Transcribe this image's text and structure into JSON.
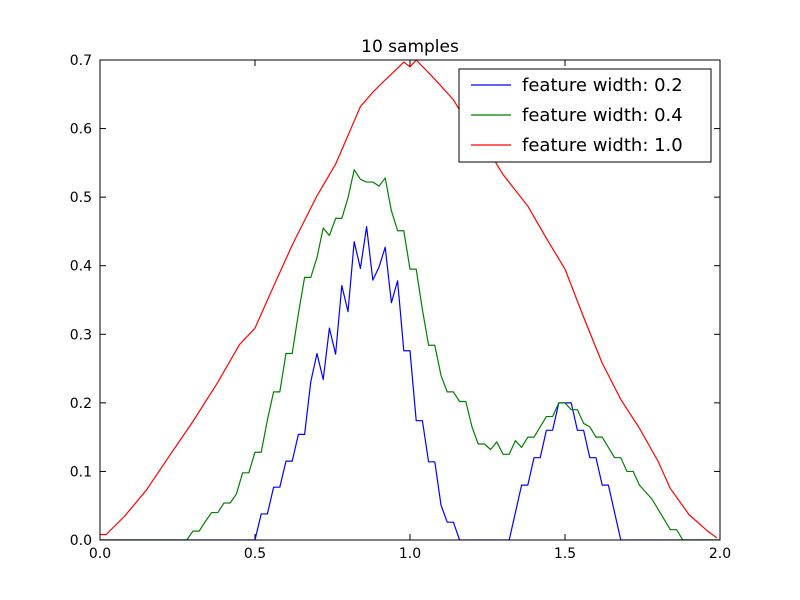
{
  "chart_data": {
    "type": "line",
    "title": "10 samples",
    "xlabel": "",
    "ylabel": "",
    "xlim": [
      0.0,
      2.0
    ],
    "ylim": [
      0.0,
      0.7
    ],
    "xticks": [
      "0.0",
      "0.5",
      "1.0",
      "1.5",
      "2.0"
    ],
    "yticks": [
      "0.0",
      "0.1",
      "0.2",
      "0.3",
      "0.4",
      "0.5",
      "0.6",
      "0.7"
    ],
    "grid": false,
    "legend_position": "top-right",
    "series": [
      {
        "name": "feature width: 0.2",
        "color": "#0000ff",
        "points": [
          [
            0.0,
            0.0
          ],
          [
            0.5,
            0.0
          ],
          [
            0.52,
            0.038
          ],
          [
            0.54,
            0.038
          ],
          [
            0.56,
            0.077
          ],
          [
            0.58,
            0.077
          ],
          [
            0.6,
            0.115
          ],
          [
            0.62,
            0.115
          ],
          [
            0.64,
            0.154
          ],
          [
            0.66,
            0.154
          ],
          [
            0.68,
            0.231
          ],
          [
            0.7,
            0.272
          ],
          [
            0.72,
            0.234
          ],
          [
            0.74,
            0.309
          ],
          [
            0.76,
            0.271
          ],
          [
            0.78,
            0.371
          ],
          [
            0.8,
            0.333
          ],
          [
            0.82,
            0.435
          ],
          [
            0.84,
            0.396
          ],
          [
            0.86,
            0.457
          ],
          [
            0.88,
            0.379
          ],
          [
            0.9,
            0.398
          ],
          [
            0.92,
            0.427
          ],
          [
            0.94,
            0.346
          ],
          [
            0.96,
            0.378
          ],
          [
            0.98,
            0.276
          ],
          [
            1.0,
            0.276
          ],
          [
            1.02,
            0.174
          ],
          [
            1.04,
            0.174
          ],
          [
            1.06,
            0.114
          ],
          [
            1.08,
            0.114
          ],
          [
            1.1,
            0.051
          ],
          [
            1.12,
            0.026
          ],
          [
            1.14,
            0.026
          ],
          [
            1.16,
            0.0
          ],
          [
            1.32,
            0.0
          ],
          [
            1.36,
            0.08
          ],
          [
            1.38,
            0.08
          ],
          [
            1.4,
            0.12
          ],
          [
            1.42,
            0.12
          ],
          [
            1.44,
            0.16
          ],
          [
            1.46,
            0.16
          ],
          [
            1.48,
            0.2
          ],
          [
            1.52,
            0.2
          ],
          [
            1.54,
            0.16
          ],
          [
            1.56,
            0.16
          ],
          [
            1.58,
            0.12
          ],
          [
            1.6,
            0.12
          ],
          [
            1.62,
            0.08
          ],
          [
            1.64,
            0.08
          ],
          [
            1.66,
            0.04
          ],
          [
            1.68,
            0.0
          ],
          [
            2.0,
            0.0
          ]
        ]
      },
      {
        "name": "feature width: 0.4",
        "color": "#008000",
        "points": [
          [
            0.0,
            0.0
          ],
          [
            0.28,
            0.0
          ],
          [
            0.3,
            0.013
          ],
          [
            0.32,
            0.013
          ],
          [
            0.34,
            0.027
          ],
          [
            0.36,
            0.04
          ],
          [
            0.38,
            0.04
          ],
          [
            0.4,
            0.054
          ],
          [
            0.42,
            0.054
          ],
          [
            0.44,
            0.067
          ],
          [
            0.46,
            0.098
          ],
          [
            0.48,
            0.098
          ],
          [
            0.5,
            0.128
          ],
          [
            0.52,
            0.128
          ],
          [
            0.54,
            0.175
          ],
          [
            0.56,
            0.216
          ],
          [
            0.58,
            0.216
          ],
          [
            0.6,
            0.272
          ],
          [
            0.62,
            0.272
          ],
          [
            0.64,
            0.33
          ],
          [
            0.66,
            0.383
          ],
          [
            0.68,
            0.383
          ],
          [
            0.7,
            0.412
          ],
          [
            0.72,
            0.455
          ],
          [
            0.74,
            0.444
          ],
          [
            0.76,
            0.469
          ],
          [
            0.78,
            0.469
          ],
          [
            0.8,
            0.499
          ],
          [
            0.82,
            0.54
          ],
          [
            0.84,
            0.526
          ],
          [
            0.86,
            0.522
          ],
          [
            0.88,
            0.522
          ],
          [
            0.9,
            0.516
          ],
          [
            0.92,
            0.528
          ],
          [
            0.94,
            0.48
          ],
          [
            0.96,
            0.451
          ],
          [
            0.98,
            0.451
          ],
          [
            1.0,
            0.395
          ],
          [
            1.02,
            0.395
          ],
          [
            1.04,
            0.336
          ],
          [
            1.06,
            0.284
          ],
          [
            1.08,
            0.284
          ],
          [
            1.1,
            0.24
          ],
          [
            1.12,
            0.216
          ],
          [
            1.14,
            0.216
          ],
          [
            1.16,
            0.202
          ],
          [
            1.18,
            0.202
          ],
          [
            1.2,
            0.165
          ],
          [
            1.22,
            0.14
          ],
          [
            1.24,
            0.14
          ],
          [
            1.26,
            0.132
          ],
          [
            1.28,
            0.143
          ],
          [
            1.3,
            0.125
          ],
          [
            1.32,
            0.125
          ],
          [
            1.34,
            0.145
          ],
          [
            1.36,
            0.135
          ],
          [
            1.38,
            0.15
          ],
          [
            1.4,
            0.15
          ],
          [
            1.42,
            0.165
          ],
          [
            1.44,
            0.18
          ],
          [
            1.46,
            0.18
          ],
          [
            1.48,
            0.2
          ],
          [
            1.5,
            0.2
          ],
          [
            1.52,
            0.19
          ],
          [
            1.54,
            0.19
          ],
          [
            1.56,
            0.17
          ],
          [
            1.58,
            0.165
          ],
          [
            1.6,
            0.15
          ],
          [
            1.62,
            0.15
          ],
          [
            1.64,
            0.135
          ],
          [
            1.66,
            0.12
          ],
          [
            1.68,
            0.12
          ],
          [
            1.7,
            0.1
          ],
          [
            1.72,
            0.1
          ],
          [
            1.74,
            0.08
          ],
          [
            1.76,
            0.07
          ],
          [
            1.78,
            0.06
          ],
          [
            1.8,
            0.045
          ],
          [
            1.82,
            0.03
          ],
          [
            1.84,
            0.015
          ],
          [
            1.86,
            0.015
          ],
          [
            1.88,
            0.0
          ],
          [
            2.0,
            0.0
          ]
        ]
      },
      {
        "name": "feature width: 1.0",
        "color": "#ff0000",
        "points": [
          [
            0.0,
            0.008
          ],
          [
            0.02,
            0.008
          ],
          [
            0.08,
            0.035
          ],
          [
            0.15,
            0.073
          ],
          [
            0.22,
            0.12
          ],
          [
            0.3,
            0.173
          ],
          [
            0.38,
            0.23
          ],
          [
            0.45,
            0.285
          ],
          [
            0.5,
            0.309
          ],
          [
            0.56,
            0.37
          ],
          [
            0.62,
            0.43
          ],
          [
            0.7,
            0.502
          ],
          [
            0.76,
            0.548
          ],
          [
            0.84,
            0.632
          ],
          [
            0.88,
            0.653
          ],
          [
            0.92,
            0.671
          ],
          [
            0.96,
            0.688
          ],
          [
            0.98,
            0.697
          ],
          [
            1.0,
            0.69
          ],
          [
            1.02,
            0.7
          ],
          [
            1.08,
            0.672
          ],
          [
            1.14,
            0.642
          ],
          [
            1.18,
            0.612
          ],
          [
            1.24,
            0.578
          ],
          [
            1.3,
            0.533
          ],
          [
            1.38,
            0.487
          ],
          [
            1.44,
            0.44
          ],
          [
            1.48,
            0.41
          ],
          [
            1.5,
            0.395
          ],
          [
            1.56,
            0.325
          ],
          [
            1.62,
            0.258
          ],
          [
            1.68,
            0.205
          ],
          [
            1.74,
            0.163
          ],
          [
            1.8,
            0.115
          ],
          [
            1.84,
            0.075
          ],
          [
            1.9,
            0.037
          ],
          [
            1.96,
            0.013
          ],
          [
            1.99,
            0.003
          ]
        ]
      }
    ]
  }
}
